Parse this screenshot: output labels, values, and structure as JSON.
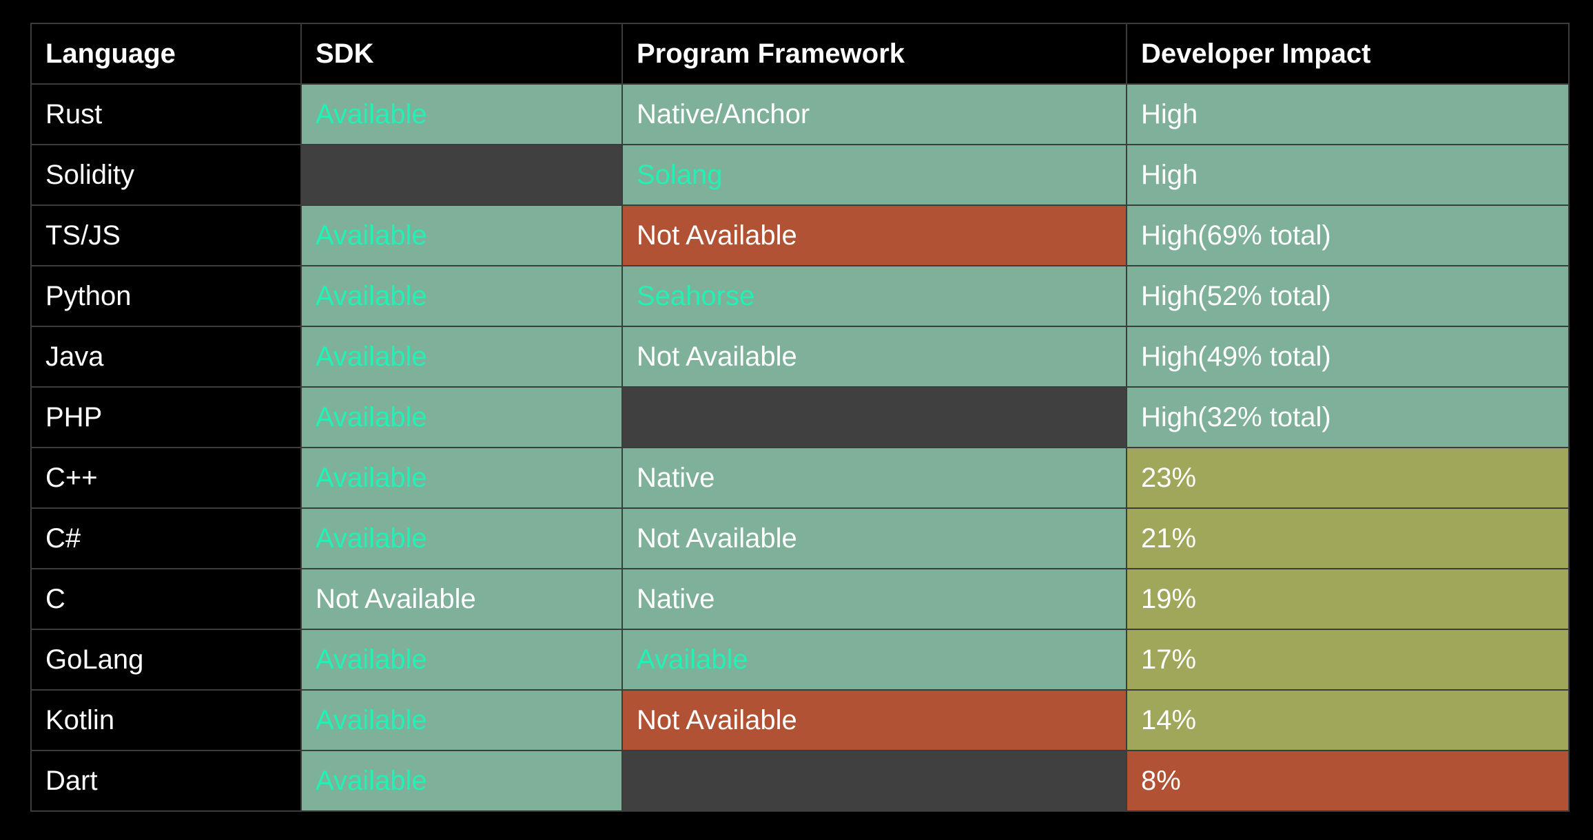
{
  "table": {
    "headers": [
      "Language",
      "SDK",
      "Program Framework",
      "Developer Impact"
    ],
    "rows": [
      {
        "language": "Rust",
        "sdk": {
          "text": "Available",
          "fill": "green",
          "tone": "mint"
        },
        "framework": {
          "text": "Native/Anchor",
          "fill": "green",
          "tone": "white"
        },
        "impact": {
          "text": "High",
          "fill": "green",
          "tone": "white"
        }
      },
      {
        "language": "Solidity",
        "sdk": {
          "text": "",
          "fill": "gray",
          "tone": "white"
        },
        "framework": {
          "text": "Solang",
          "fill": "green",
          "tone": "mint"
        },
        "impact": {
          "text": "High",
          "fill": "green",
          "tone": "white"
        }
      },
      {
        "language": "TS/JS",
        "sdk": {
          "text": "Available",
          "fill": "green",
          "tone": "mint"
        },
        "framework": {
          "text": "Not Available",
          "fill": "red",
          "tone": "white"
        },
        "impact": {
          "text": "High(69% total)",
          "fill": "green",
          "tone": "white"
        }
      },
      {
        "language": "Python",
        "sdk": {
          "text": "Available",
          "fill": "green",
          "tone": "mint"
        },
        "framework": {
          "text": "Seahorse",
          "fill": "green",
          "tone": "mint"
        },
        "impact": {
          "text": "High(52% total)",
          "fill": "green",
          "tone": "white"
        }
      },
      {
        "language": "Java",
        "sdk": {
          "text": "Available",
          "fill": "green",
          "tone": "mint"
        },
        "framework": {
          "text": "Not Available",
          "fill": "green",
          "tone": "white"
        },
        "impact": {
          "text": "High(49% total)",
          "fill": "green",
          "tone": "white"
        }
      },
      {
        "language": "PHP",
        "sdk": {
          "text": "Available",
          "fill": "green",
          "tone": "mint"
        },
        "framework": {
          "text": "",
          "fill": "gray",
          "tone": "white"
        },
        "impact": {
          "text": "High(32% total)",
          "fill": "green",
          "tone": "white"
        }
      },
      {
        "language": "C++",
        "sdk": {
          "text": "Available",
          "fill": "green",
          "tone": "mint"
        },
        "framework": {
          "text": "Native",
          "fill": "green",
          "tone": "white"
        },
        "impact": {
          "text": "23%",
          "fill": "olive",
          "tone": "white"
        }
      },
      {
        "language": "C#",
        "sdk": {
          "text": "Available",
          "fill": "green",
          "tone": "mint"
        },
        "framework": {
          "text": "Not Available",
          "fill": "green",
          "tone": "white"
        },
        "impact": {
          "text": "21%",
          "fill": "olive",
          "tone": "white"
        }
      },
      {
        "language": "C",
        "sdk": {
          "text": "Not Available",
          "fill": "green",
          "tone": "white"
        },
        "framework": {
          "text": "Native",
          "fill": "green",
          "tone": "white"
        },
        "impact": {
          "text": "19%",
          "fill": "olive",
          "tone": "white"
        }
      },
      {
        "language": "GoLang",
        "sdk": {
          "text": "Available",
          "fill": "green",
          "tone": "mint"
        },
        "framework": {
          "text": "Available",
          "fill": "green",
          "tone": "mint"
        },
        "impact": {
          "text": "17%",
          "fill": "olive",
          "tone": "white"
        }
      },
      {
        "language": "Kotlin",
        "sdk": {
          "text": "Available",
          "fill": "green",
          "tone": "mint"
        },
        "framework": {
          "text": "Not Available",
          "fill": "red",
          "tone": "white"
        },
        "impact": {
          "text": "14%",
          "fill": "olive",
          "tone": "white"
        }
      },
      {
        "language": "Dart",
        "sdk": {
          "text": "Available",
          "fill": "green",
          "tone": "mint"
        },
        "framework": {
          "text": "",
          "fill": "gray",
          "tone": "white"
        },
        "impact": {
          "text": "8%",
          "fill": "red",
          "tone": "white"
        }
      }
    ]
  },
  "colors": {
    "background": "#000000",
    "grid": "#3c3c3c",
    "green_fill": "#7eb09a",
    "gray_fill": "#404040",
    "red_fill": "#b25234",
    "olive_fill": "#a0a75a",
    "mint_text": "#25f0b3",
    "white_text": "#ffffff"
  }
}
